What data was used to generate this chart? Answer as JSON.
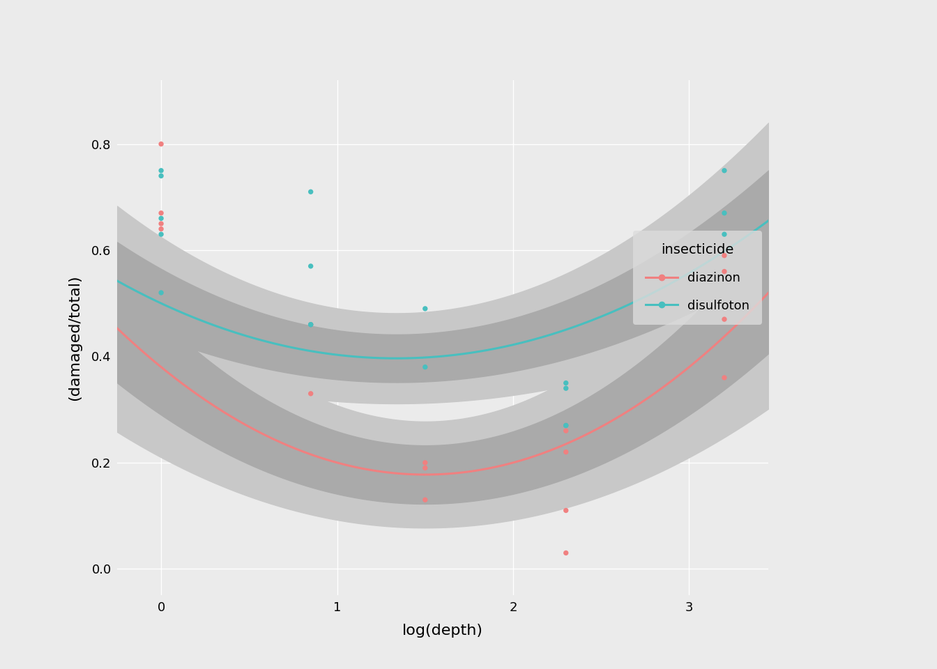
{
  "title": "",
  "xlabel": "log(depth)",
  "ylabel": "(damaged/total)",
  "xlim": [
    -0.25,
    3.45
  ],
  "ylim": [
    -0.05,
    0.92
  ],
  "yticks": [
    0.0,
    0.2,
    0.4,
    0.6,
    0.8
  ],
  "xticks": [
    0,
    1,
    2,
    3
  ],
  "bg_color": "#EBEBEB",
  "plot_bg_color": "#EBEBEB",
  "grid_color": "#FFFFFF",
  "diazinon_color": "#F08080",
  "disulfoton_color": "#48BFBF",
  "ci_dark": "#AAAAAA",
  "ci_light": "#C8C8C8",
  "diazinon_points": [
    [
      0.0,
      0.8
    ],
    [
      0.0,
      0.67
    ],
    [
      0.0,
      0.65
    ],
    [
      0.0,
      0.64
    ],
    [
      0.85,
      0.46
    ],
    [
      0.85,
      0.33
    ],
    [
      1.5,
      0.13
    ],
    [
      1.5,
      0.19
    ],
    [
      1.5,
      0.2
    ],
    [
      2.3,
      0.03
    ],
    [
      2.3,
      0.11
    ],
    [
      2.3,
      0.22
    ],
    [
      2.3,
      0.26
    ],
    [
      2.3,
      0.27
    ],
    [
      3.2,
      0.36
    ],
    [
      3.2,
      0.56
    ],
    [
      3.2,
      0.59
    ],
    [
      3.2,
      0.47
    ]
  ],
  "disulfoton_points": [
    [
      0.0,
      0.75
    ],
    [
      0.0,
      0.74
    ],
    [
      0.0,
      0.66
    ],
    [
      0.0,
      0.63
    ],
    [
      0.0,
      0.52
    ],
    [
      0.85,
      0.71
    ],
    [
      0.85,
      0.57
    ],
    [
      0.85,
      0.46
    ],
    [
      0.85,
      0.46
    ],
    [
      1.5,
      0.49
    ],
    [
      1.5,
      0.38
    ],
    [
      2.3,
      0.35
    ],
    [
      2.3,
      0.34
    ],
    [
      2.3,
      0.27
    ],
    [
      2.3,
      0.27
    ],
    [
      3.2,
      0.75
    ],
    [
      3.2,
      0.67
    ],
    [
      3.2,
      0.63
    ]
  ],
  "diazinon_fit": {
    "a": 0.09,
    "b": -0.27,
    "c": 0.38
  },
  "disulfoton_fit": {
    "a": 0.058,
    "b": -0.155,
    "c": 0.5
  },
  "legend_title": "insecticide",
  "legend_labels": [
    "diazinon",
    "disulfoton"
  ]
}
